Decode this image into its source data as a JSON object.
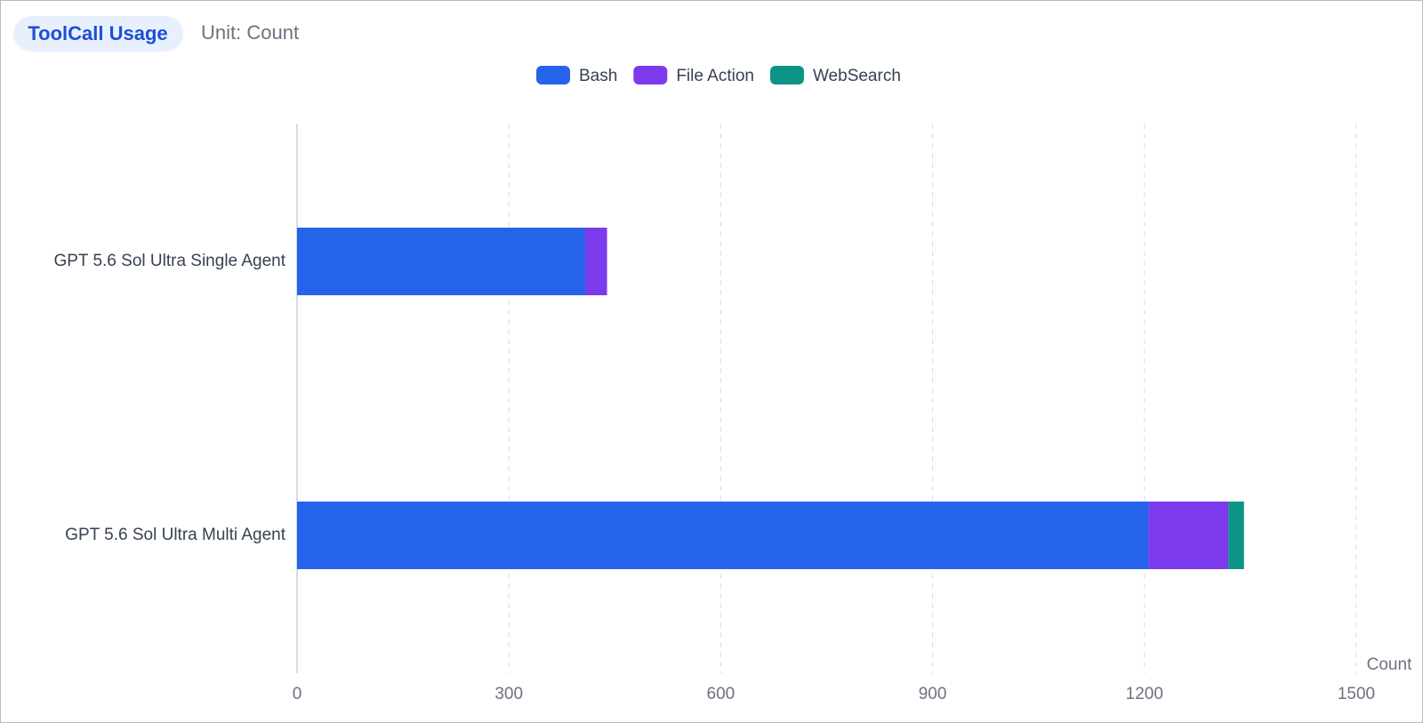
{
  "chart_data": {
    "type": "bar",
    "orientation": "horizontal",
    "stacked": true,
    "title": "ToolCall Usage",
    "subtitle": "Unit: Count",
    "x_label": "Count",
    "categories": [
      "GPT 5.6 Sol Ultra Single Agent",
      "GPT 5.6 Sol Ultra Multi Agent"
    ],
    "series": [
      {
        "name": "Bash",
        "color": "#2563eb",
        "values": [
          408,
          1206
        ]
      },
      {
        "name": "File Action",
        "color": "#7c3aed",
        "values": [
          31,
          113
        ]
      },
      {
        "name": "WebSearch",
        "color": "#0d9488",
        "values": [
          0,
          22
        ]
      }
    ],
    "xlim": [
      0,
      1500
    ],
    "xticks": [
      0,
      300,
      600,
      900,
      1200,
      1500
    ],
    "grid": true
  }
}
